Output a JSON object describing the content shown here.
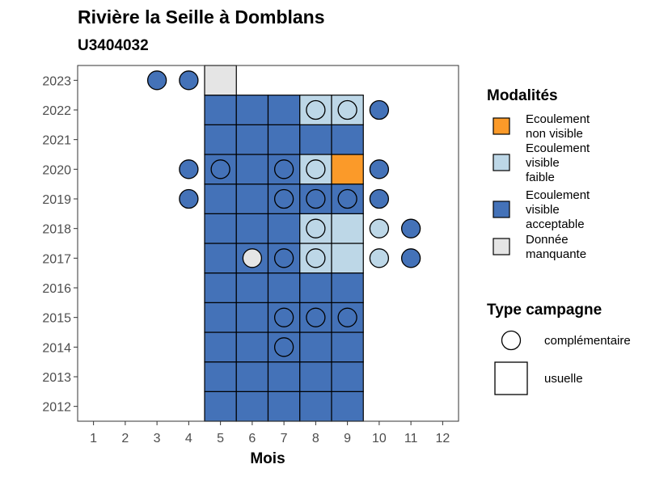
{
  "chart_data": {
    "type": "heatmap",
    "title": "Rivière la Seille à Domblans",
    "subtitle": "U3404032",
    "xlabel": "Mois",
    "ylabel": "",
    "x_ticks": [
      1,
      2,
      3,
      4,
      5,
      6,
      7,
      8,
      9,
      10,
      11,
      12
    ],
    "y_ticks": [
      2012,
      2013,
      2014,
      2015,
      2016,
      2017,
      2018,
      2019,
      2020,
      2021,
      2022,
      2023
    ],
    "xlim": [
      0.5,
      12.5
    ],
    "ylim": [
      2011.5,
      2023.5
    ],
    "grid": false,
    "categories": {
      "non_visible": {
        "label": "Ecoulement\nnon visible",
        "color": "#FB9A29"
      },
      "visible_faible": {
        "label": "Ecoulement\nvisible\nfaible",
        "color": "#BDD7E7"
      },
      "visible_acceptable": {
        "label": "Ecoulement\nvisible\nacceptable",
        "color": "#4472B8"
      },
      "manquante": {
        "label": "Donnée\nmanquante",
        "color": "#E5E5E5"
      }
    },
    "usual_campaigns": [
      {
        "year": 2012,
        "month": 5,
        "category": "visible_acceptable"
      },
      {
        "year": 2012,
        "month": 6,
        "category": "visible_acceptable"
      },
      {
        "year": 2012,
        "month": 7,
        "category": "visible_acceptable"
      },
      {
        "year": 2012,
        "month": 8,
        "category": "visible_acceptable"
      },
      {
        "year": 2012,
        "month": 9,
        "category": "visible_acceptable"
      },
      {
        "year": 2013,
        "month": 5,
        "category": "visible_acceptable"
      },
      {
        "year": 2013,
        "month": 6,
        "category": "visible_acceptable"
      },
      {
        "year": 2013,
        "month": 7,
        "category": "visible_acceptable"
      },
      {
        "year": 2013,
        "month": 8,
        "category": "visible_acceptable"
      },
      {
        "year": 2013,
        "month": 9,
        "category": "visible_acceptable"
      },
      {
        "year": 2014,
        "month": 5,
        "category": "visible_acceptable"
      },
      {
        "year": 2014,
        "month": 6,
        "category": "visible_acceptable"
      },
      {
        "year": 2014,
        "month": 7,
        "category": "visible_acceptable"
      },
      {
        "year": 2014,
        "month": 8,
        "category": "visible_acceptable"
      },
      {
        "year": 2014,
        "month": 9,
        "category": "visible_acceptable"
      },
      {
        "year": 2015,
        "month": 5,
        "category": "visible_acceptable"
      },
      {
        "year": 2015,
        "month": 6,
        "category": "visible_acceptable"
      },
      {
        "year": 2015,
        "month": 7,
        "category": "visible_acceptable"
      },
      {
        "year": 2015,
        "month": 8,
        "category": "visible_acceptable"
      },
      {
        "year": 2015,
        "month": 9,
        "category": "visible_acceptable"
      },
      {
        "year": 2016,
        "month": 5,
        "category": "visible_acceptable"
      },
      {
        "year": 2016,
        "month": 6,
        "category": "visible_acceptable"
      },
      {
        "year": 2016,
        "month": 7,
        "category": "visible_acceptable"
      },
      {
        "year": 2016,
        "month": 8,
        "category": "visible_acceptable"
      },
      {
        "year": 2016,
        "month": 9,
        "category": "visible_acceptable"
      },
      {
        "year": 2017,
        "month": 5,
        "category": "visible_acceptable"
      },
      {
        "year": 2017,
        "month": 6,
        "category": "visible_acceptable"
      },
      {
        "year": 2017,
        "month": 7,
        "category": "visible_acceptable"
      },
      {
        "year": 2017,
        "month": 8,
        "category": "visible_faible"
      },
      {
        "year": 2017,
        "month": 9,
        "category": "visible_faible"
      },
      {
        "year": 2018,
        "month": 5,
        "category": "visible_acceptable"
      },
      {
        "year": 2018,
        "month": 6,
        "category": "visible_acceptable"
      },
      {
        "year": 2018,
        "month": 7,
        "category": "visible_acceptable"
      },
      {
        "year": 2018,
        "month": 8,
        "category": "visible_faible"
      },
      {
        "year": 2018,
        "month": 9,
        "category": "visible_faible"
      },
      {
        "year": 2019,
        "month": 5,
        "category": "visible_acceptable"
      },
      {
        "year": 2019,
        "month": 6,
        "category": "visible_acceptable"
      },
      {
        "year": 2019,
        "month": 7,
        "category": "visible_acceptable"
      },
      {
        "year": 2019,
        "month": 8,
        "category": "visible_acceptable"
      },
      {
        "year": 2019,
        "month": 9,
        "category": "visible_acceptable"
      },
      {
        "year": 2020,
        "month": 5,
        "category": "visible_acceptable"
      },
      {
        "year": 2020,
        "month": 6,
        "category": "visible_acceptable"
      },
      {
        "year": 2020,
        "month": 7,
        "category": "visible_acceptable"
      },
      {
        "year": 2020,
        "month": 8,
        "category": "visible_faible"
      },
      {
        "year": 2020,
        "month": 9,
        "category": "non_visible"
      },
      {
        "year": 2021,
        "month": 5,
        "category": "visible_acceptable"
      },
      {
        "year": 2021,
        "month": 6,
        "category": "visible_acceptable"
      },
      {
        "year": 2021,
        "month": 7,
        "category": "visible_acceptable"
      },
      {
        "year": 2021,
        "month": 8,
        "category": "visible_acceptable"
      },
      {
        "year": 2021,
        "month": 9,
        "category": "visible_acceptable"
      },
      {
        "year": 2022,
        "month": 5,
        "category": "visible_acceptable"
      },
      {
        "year": 2022,
        "month": 6,
        "category": "visible_acceptable"
      },
      {
        "year": 2022,
        "month": 7,
        "category": "visible_acceptable"
      },
      {
        "year": 2022,
        "month": 8,
        "category": "visible_faible"
      },
      {
        "year": 2022,
        "month": 9,
        "category": "visible_faible"
      },
      {
        "year": 2023,
        "month": 5,
        "category": "manquante"
      }
    ],
    "complementary_campaigns": [
      {
        "year": 2014,
        "month": 7,
        "category": "visible_acceptable"
      },
      {
        "year": 2015,
        "month": 7,
        "category": "visible_acceptable"
      },
      {
        "year": 2015,
        "month": 8,
        "category": "visible_acceptable"
      },
      {
        "year": 2015,
        "month": 9,
        "category": "visible_acceptable"
      },
      {
        "year": 2017,
        "month": 6,
        "category": "manquante"
      },
      {
        "year": 2017,
        "month": 7,
        "category": "visible_acceptable"
      },
      {
        "year": 2017,
        "month": 8,
        "category": "visible_faible"
      },
      {
        "year": 2017,
        "month": 10,
        "category": "visible_faible"
      },
      {
        "year": 2017,
        "month": 11,
        "category": "visible_acceptable"
      },
      {
        "year": 2018,
        "month": 8,
        "category": "visible_faible"
      },
      {
        "year": 2018,
        "month": 10,
        "category": "visible_faible"
      },
      {
        "year": 2018,
        "month": 11,
        "category": "visible_acceptable"
      },
      {
        "year": 2019,
        "month": 4,
        "category": "visible_acceptable"
      },
      {
        "year": 2019,
        "month": 7,
        "category": "visible_acceptable"
      },
      {
        "year": 2019,
        "month": 8,
        "category": "visible_acceptable"
      },
      {
        "year": 2019,
        "month": 9,
        "category": "visible_acceptable"
      },
      {
        "year": 2019,
        "month": 10,
        "category": "visible_acceptable"
      },
      {
        "year": 2020,
        "month": 4,
        "category": "visible_acceptable"
      },
      {
        "year": 2020,
        "month": 5,
        "category": "visible_acceptable"
      },
      {
        "year": 2020,
        "month": 7,
        "category": "visible_acceptable"
      },
      {
        "year": 2020,
        "month": 8,
        "category": "visible_faible"
      },
      {
        "year": 2020,
        "month": 10,
        "category": "visible_acceptable"
      },
      {
        "year": 2022,
        "month": 8,
        "category": "visible_faible"
      },
      {
        "year": 2022,
        "month": 9,
        "category": "visible_faible"
      },
      {
        "year": 2022,
        "month": 10,
        "category": "visible_acceptable"
      },
      {
        "year": 2023,
        "month": 3,
        "category": "visible_acceptable"
      },
      {
        "year": 2023,
        "month": 4,
        "category": "visible_acceptable"
      }
    ],
    "legend": {
      "modalites_title": "Modalités",
      "modalites_order": [
        "non_visible",
        "visible_faible",
        "visible_acceptable",
        "manquante"
      ],
      "type_title": "Type campagne",
      "type_items": [
        {
          "shape": "circle",
          "label": "complémentaire"
        },
        {
          "shape": "square",
          "label": "usuelle"
        }
      ],
      "placement": "right"
    }
  }
}
